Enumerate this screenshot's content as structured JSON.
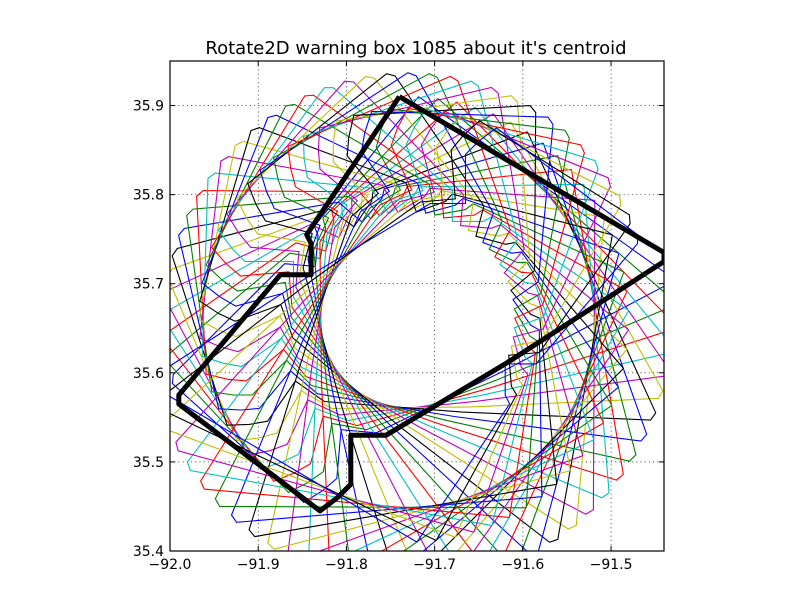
{
  "chart_data": {
    "type": "line",
    "title": "Rotate2D warning box 1085 about it's centroid",
    "xlabel": "",
    "ylabel": "",
    "xlim": [
      -92.0,
      -91.44
    ],
    "ylim": [
      35.4,
      35.95
    ],
    "xticks": [
      -92.0,
      -91.9,
      -91.8,
      -91.7,
      -91.6,
      -91.5
    ],
    "xtick_labels": [
      "−92.0",
      "−91.9",
      "−91.8",
      "−91.7",
      "−91.6",
      "−91.5"
    ],
    "yticks": [
      35.4,
      35.5,
      35.6,
      35.7,
      35.8,
      35.9
    ],
    "ytick_labels": [
      "35.4",
      "35.5",
      "35.6",
      "35.7",
      "35.8",
      "35.9"
    ],
    "grid": true,
    "legend": "none",
    "colors": [
      "#0000ff",
      "#008000",
      "#ff0000",
      "#00bfbf",
      "#bf00bf",
      "#bfbf00",
      "#000000"
    ],
    "original_color": "#000000",
    "rotation_count": 36,
    "rotation_step_deg": -5,
    "centroid": [
      -91.73,
      35.66
    ],
    "original_polygon": {
      "x": [
        -91.74,
        -91.44,
        -91.44,
        -91.62,
        -91.755,
        -91.795,
        -91.795,
        -91.81,
        -91.83,
        -91.99,
        -91.99,
        -91.875,
        -91.84,
        -91.84,
        -91.845,
        -91.74
      ],
      "y": [
        35.91,
        35.735,
        35.725,
        35.61,
        35.53,
        35.53,
        35.475,
        35.46,
        35.445,
        35.565,
        35.575,
        35.71,
        35.71,
        35.745,
        35.755,
        35.91
      ]
    }
  }
}
